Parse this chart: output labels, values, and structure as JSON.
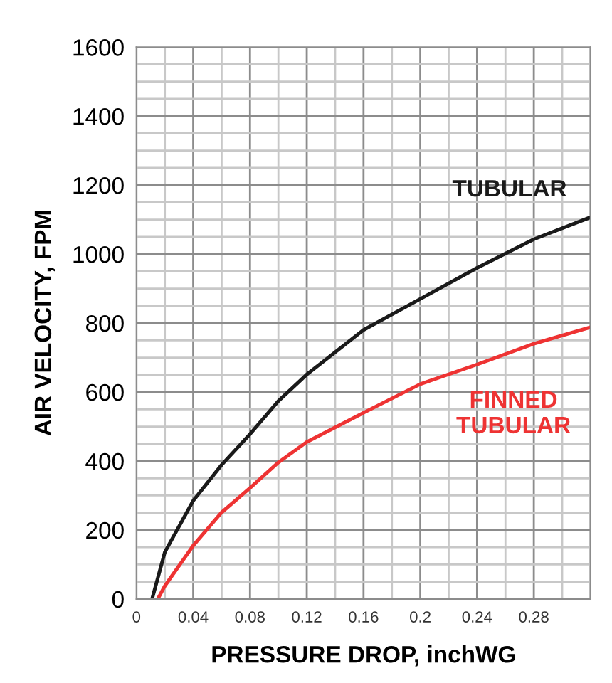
{
  "chart_data": {
    "type": "line",
    "xlabel": "PRESSURE DROP, inchWG",
    "ylabel": "AIR VELOCITY, FPM",
    "xlim": [
      0,
      0.32
    ],
    "xticks": [
      0,
      0.04,
      0.08,
      0.12,
      0.16,
      0.2,
      0.24,
      0.28
    ],
    "ylim": [
      0,
      1600
    ],
    "yticks": [
      0,
      200,
      400,
      600,
      800,
      1000,
      1200,
      1400,
      1600
    ],
    "grid": true,
    "legend": false,
    "marker": "none",
    "line_style": "solid",
    "series": [
      {
        "name": "TUBULAR",
        "color": "#1a1a1a",
        "x": [
          0.011,
          0.02,
          0.04,
          0.06,
          0.08,
          0.1,
          0.12,
          0.16,
          0.2,
          0.24,
          0.28,
          0.32
        ],
        "values": [
          0,
          136,
          285,
          389,
          478,
          574,
          651,
          780,
          870,
          960,
          1043,
          1107
        ]
      },
      {
        "name": "FINNED\nTUBULAR",
        "color": "#ee3333",
        "x": [
          0.015,
          0.02,
          0.04,
          0.06,
          0.08,
          0.1,
          0.12,
          0.16,
          0.2,
          0.24,
          0.28,
          0.32
        ],
        "values": [
          0,
          38,
          155,
          251,
          322,
          396,
          455,
          540,
          623,
          680,
          740,
          788
        ]
      }
    ]
  }
}
